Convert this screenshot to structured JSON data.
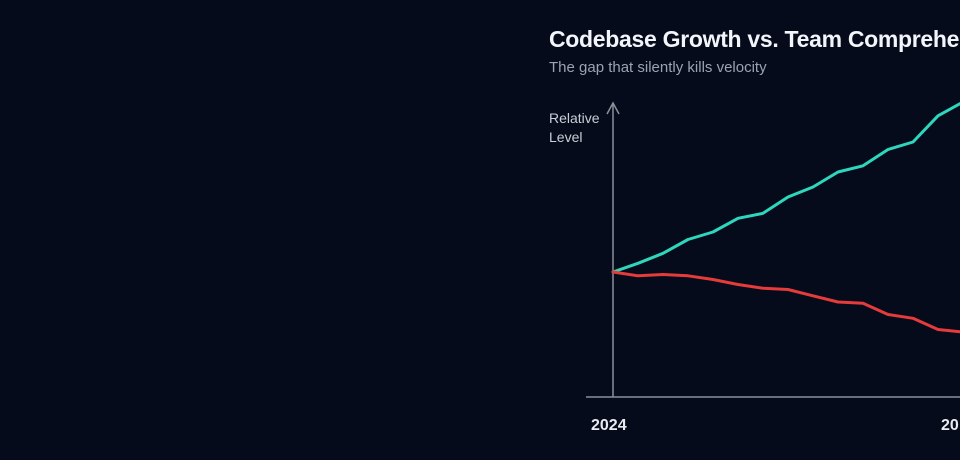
{
  "chart_data": {
    "type": "line",
    "title": "Codebase Growth vs. Team Comprehension",
    "subtitle": "The gap that silently kills velocity",
    "ylabel": "Relative Level",
    "xlabel": "",
    "x_tick_labels": [
      "2024",
      "20"
    ],
    "x": [
      0,
      1,
      2,
      3,
      4,
      5,
      6,
      7,
      8,
      9,
      10,
      11,
      12,
      13,
      14
    ],
    "grid": false,
    "legend": "none",
    "series": [
      {
        "color": "#2fd6be",
        "values": [
          50,
          53.5,
          57.5,
          63,
          66,
          71.5,
          73.5,
          80,
          84,
          90,
          92.5,
          99,
          102,
          112.5,
          118
        ]
      },
      {
        "color": "#e53b3b",
        "values": [
          50,
          48.5,
          49,
          48.5,
          47,
          45,
          43.5,
          43,
          40.5,
          38,
          37.5,
          33,
          31.5,
          27,
          26
        ]
      }
    ]
  }
}
